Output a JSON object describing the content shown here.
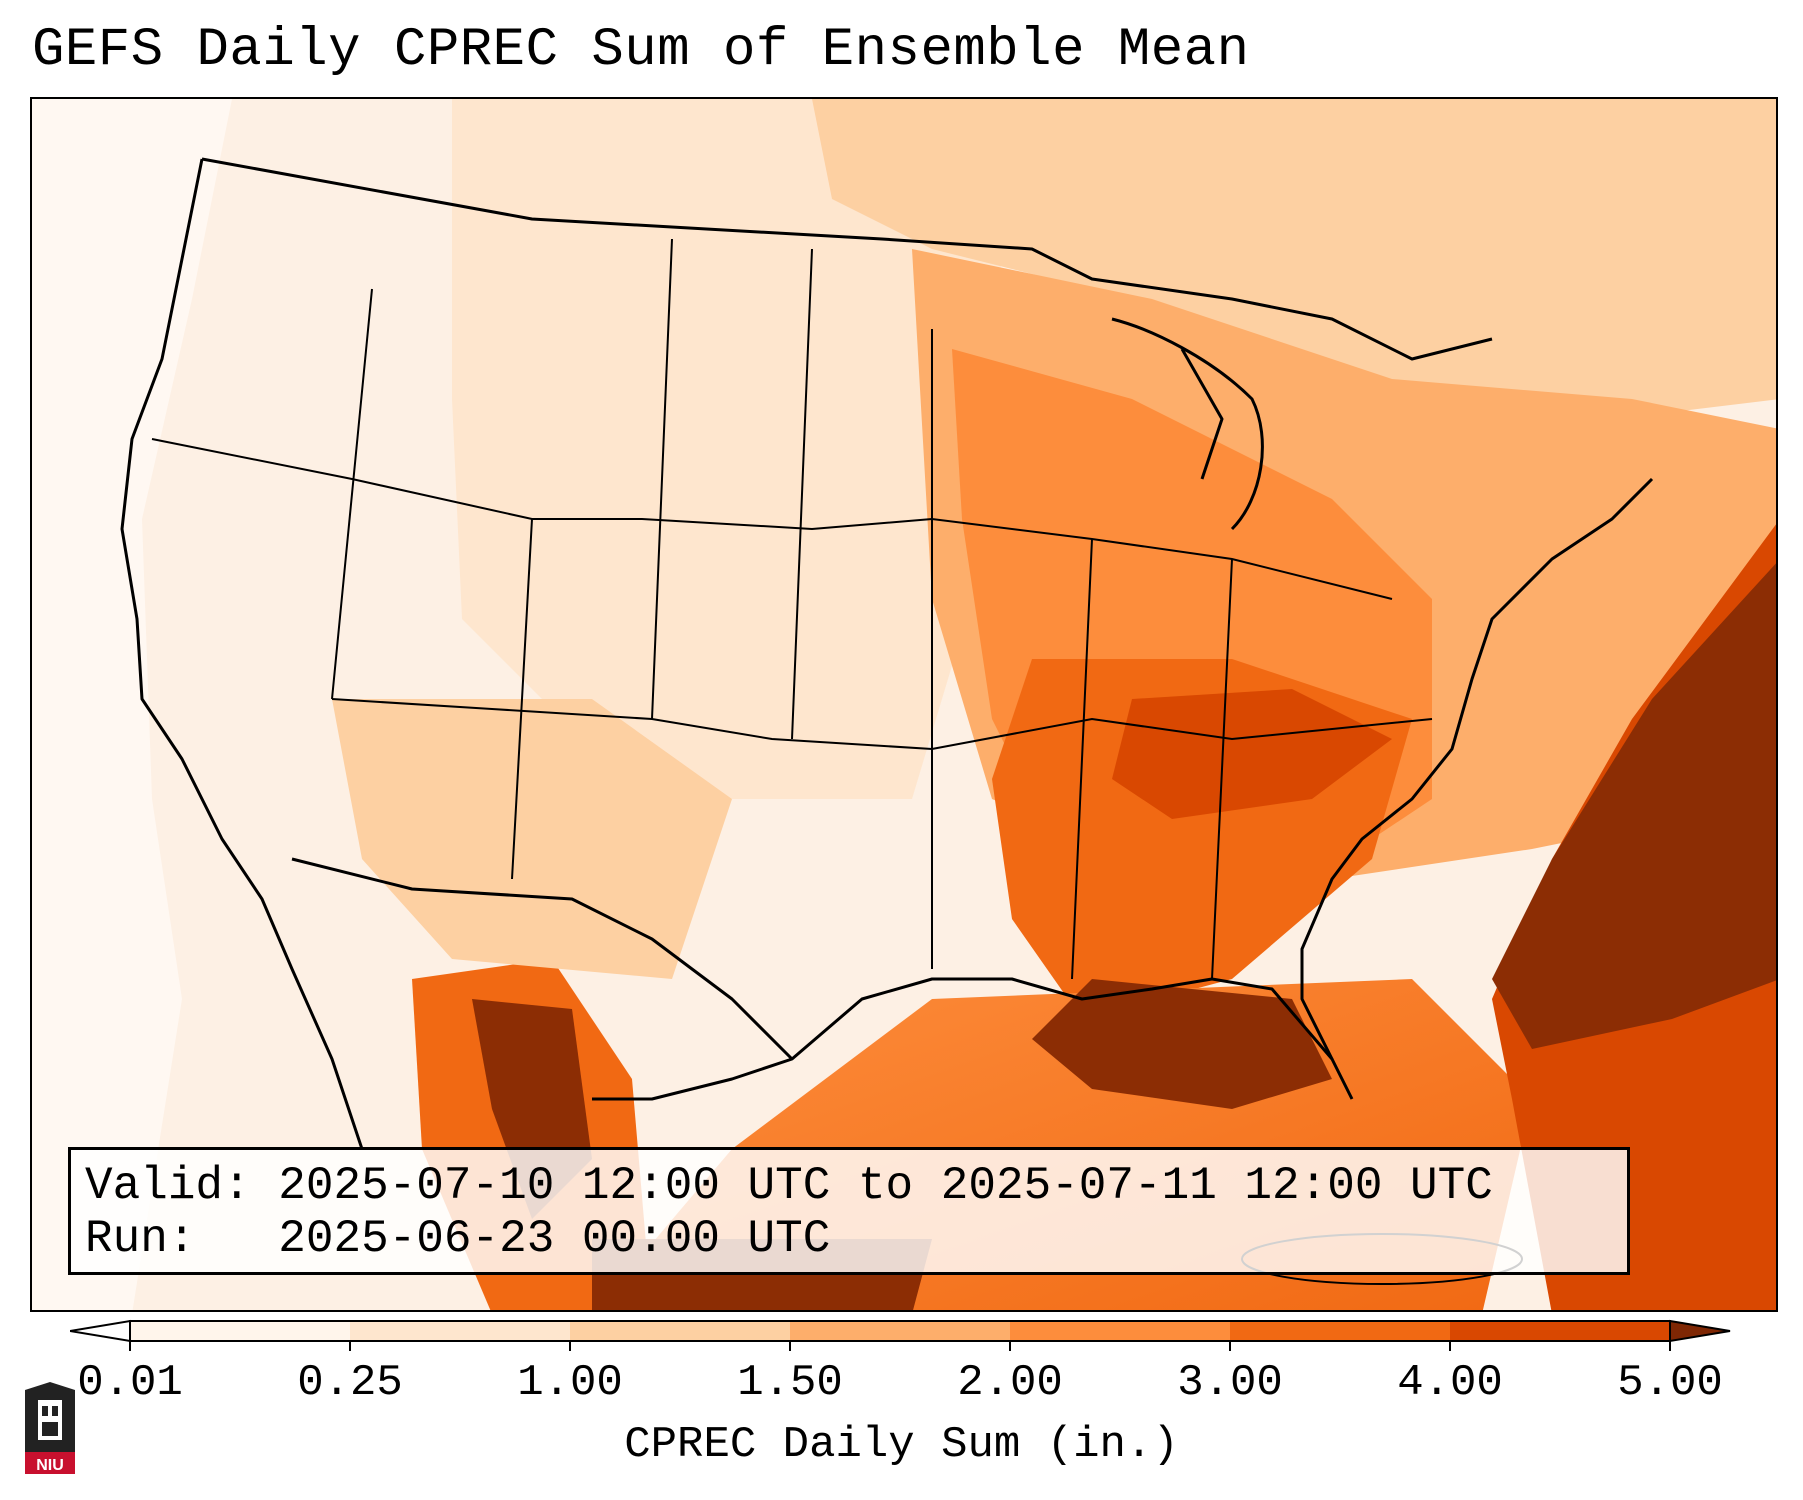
{
  "title": "GEFS Daily CPREC Sum of Ensemble Mean",
  "info": {
    "valid_label": "Valid:",
    "valid_value": "2025-07-10 12:00 UTC to 2025-07-11 12:00 UTC",
    "run_label": "Run:",
    "run_value": "2025-06-23 00:00 UTC"
  },
  "colorbar": {
    "label": "CPREC Daily Sum (in.)",
    "ticks": [
      "0.01",
      "0.25",
      "1.00",
      "1.50",
      "2.00",
      "3.00",
      "4.00",
      "5.00"
    ],
    "colors": [
      "#fff5eb",
      "#fee6ce",
      "#fdd0a2",
      "#fdae6b",
      "#fd8d3c",
      "#f16913",
      "#d94801",
      "#8c2d04"
    ],
    "under_color": "#ffffff",
    "over_color": "#7f2704"
  },
  "logo": {
    "text": "NIU",
    "colors": {
      "shield": "#222222",
      "band": "#c8102e"
    }
  }
}
